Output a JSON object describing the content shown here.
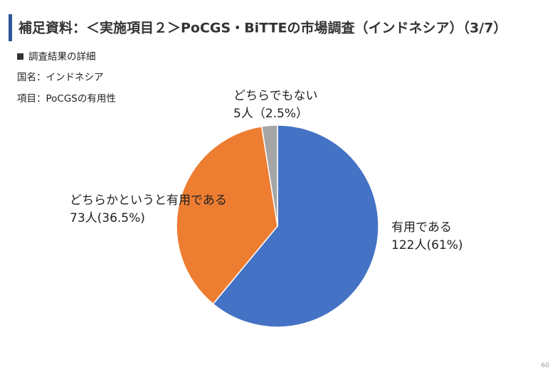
{
  "slide": {
    "title": "補足資料：＜実施項目２＞PoCGS・BiTTEの市場調査（インドネシア）（3/7）",
    "bullet": "調査結果の詳細",
    "lines": [
      "国名：インドネシア",
      "項目：PoCGSの有用性"
    ],
    "page_number": "60"
  },
  "chart_data": {
    "type": "pie",
    "categories": [
      "有用である",
      "どちらかというと有用である",
      "どちらでもない"
    ],
    "values": [
      122,
      73,
      5
    ],
    "value_labels": [
      "122人(61%)",
      "73人(36.5%)",
      "5人（2.5%）"
    ],
    "colors": [
      "#4472c4",
      "#ed7d31",
      "#a5a5a5"
    ]
  }
}
